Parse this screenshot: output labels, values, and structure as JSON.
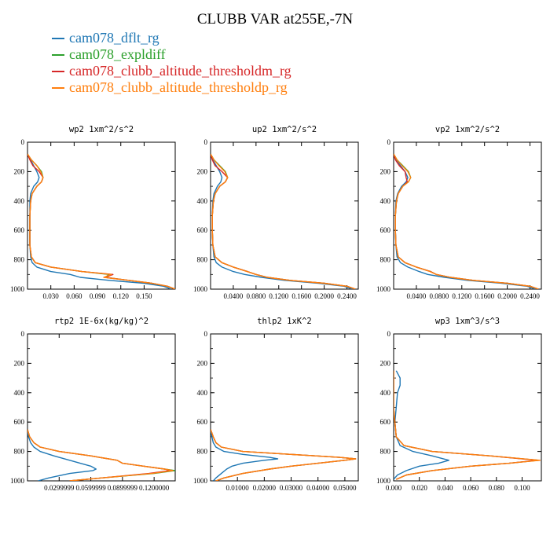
{
  "title": "CLUBB VAR at255E,-7N",
  "legend": [
    {
      "name": "cam078_dflt_rg",
      "color": "#1f77b4"
    },
    {
      "name": "cam078_expldiff",
      "color": "#2ca02c"
    },
    {
      "name": "cam078_clubb_altitude_thresholdm_rg",
      "color": "#d62728"
    },
    {
      "name": "cam078_clubb_altitude_thresholdp_rg",
      "color": "#ff7f0e"
    }
  ],
  "chart_data": [
    {
      "type": "line",
      "title": "wp2   1xm^2/s^2",
      "xlim": [
        0,
        0.19
      ],
      "ylim": [
        1000,
        0
      ],
      "xticks": [
        0.03,
        0.06,
        0.09,
        0.12,
        0.15
      ],
      "xticklabels": [
        "0.030",
        "0.060",
        "0.090",
        "0.120",
        "0.150"
      ],
      "yticks": [
        0,
        200,
        400,
        600,
        800,
        1000
      ],
      "y": [
        80,
        120,
        160,
        200,
        240,
        270,
        300,
        350,
        400,
        500,
        600,
        700,
        780,
        820,
        850,
        880,
        900,
        920,
        940,
        960,
        980,
        1000
      ],
      "series": [
        {
          "name": "cam078_dflt_rg",
          "values": [
            0,
            0.004,
            0.008,
            0.012,
            0.015,
            0.013,
            0.008,
            0.004,
            0.003,
            0.003,
            0.003,
            0.003,
            0.004,
            0.006,
            0.012,
            0.03,
            0.055,
            0.068,
            0.105,
            0.15,
            0.175,
            0.185
          ]
        },
        {
          "name": "cam078_expldiff",
          "values": [
            0,
            0.005,
            0.012,
            0.018,
            0.02,
            0.018,
            0.012,
            0.006,
            0.004,
            0.003,
            0.003,
            0.003,
            0.005,
            0.01,
            0.03,
            0.07,
            0.105,
            0.1,
            0.13,
            0.16,
            0.18,
            0.19
          ]
        },
        {
          "name": "cam078_clubb_altitude_thresholdm_rg",
          "values": [
            0,
            0.003,
            0.007,
            0.015,
            0.02,
            0.018,
            0.012,
            0.006,
            0.004,
            0.003,
            0.003,
            0.003,
            0.005,
            0.01,
            0.03,
            0.07,
            0.11,
            0.1,
            0.13,
            0.16,
            0.18,
            0.19
          ]
        },
        {
          "name": "cam078_clubb_altitude_thresholdp_rg",
          "values": [
            0,
            0.005,
            0.012,
            0.017,
            0.02,
            0.018,
            0.012,
            0.006,
            0.004,
            0.003,
            0.003,
            0.003,
            0.005,
            0.01,
            0.03,
            0.07,
            0.108,
            0.098,
            0.13,
            0.16,
            0.18,
            0.19
          ]
        }
      ]
    },
    {
      "type": "line",
      "title": "up2   1xm^2/s^2",
      "xlim": [
        0,
        0.26
      ],
      "ylim": [
        1000,
        0
      ],
      "xticks": [
        0.04,
        0.08,
        0.12,
        0.16,
        0.2,
        0.24
      ],
      "xticklabels": [
        "0.0400",
        "0.0800",
        "0.1200",
        "0.1600",
        "0.2000",
        "0.2400"
      ],
      "yticks": [
        0,
        200,
        400,
        600,
        800,
        1000
      ],
      "y": [
        80,
        120,
        160,
        200,
        240,
        270,
        300,
        350,
        400,
        500,
        600,
        700,
        780,
        820,
        850,
        880,
        900,
        920,
        940,
        960,
        980,
        1000
      ],
      "series": [
        {
          "name": "cam078_dflt_rg",
          "values": [
            0,
            0.004,
            0.01,
            0.016,
            0.02,
            0.018,
            0.012,
            0.006,
            0.004,
            0.003,
            0.003,
            0.004,
            0.006,
            0.01,
            0.02,
            0.04,
            0.06,
            0.09,
            0.13,
            0.19,
            0.235,
            0.25
          ]
        },
        {
          "name": "cam078_expldiff",
          "values": [
            0,
            0.006,
            0.016,
            0.026,
            0.03,
            0.026,
            0.016,
            0.008,
            0.005,
            0.003,
            0.003,
            0.004,
            0.008,
            0.02,
            0.04,
            0.065,
            0.08,
            0.1,
            0.14,
            0.2,
            0.24,
            0.255
          ]
        },
        {
          "name": "cam078_clubb_altitude_thresholdm_rg",
          "values": [
            0,
            0.003,
            0.008,
            0.02,
            0.03,
            0.026,
            0.016,
            0.008,
            0.005,
            0.003,
            0.003,
            0.004,
            0.008,
            0.02,
            0.04,
            0.065,
            0.08,
            0.1,
            0.14,
            0.2,
            0.24,
            0.255
          ]
        },
        {
          "name": "cam078_clubb_altitude_thresholdp_rg",
          "values": [
            0,
            0.006,
            0.015,
            0.025,
            0.03,
            0.026,
            0.016,
            0.008,
            0.005,
            0.003,
            0.003,
            0.004,
            0.008,
            0.02,
            0.04,
            0.064,
            0.08,
            0.1,
            0.14,
            0.2,
            0.24,
            0.255
          ]
        }
      ]
    },
    {
      "type": "line",
      "title": "vp2   1xm^2/s^2",
      "xlim": [
        0,
        0.26
      ],
      "ylim": [
        1000,
        0
      ],
      "xticks": [
        0.04,
        0.08,
        0.12,
        0.16,
        0.2,
        0.24
      ],
      "xticklabels": [
        "0.0400",
        "0.0800",
        "0.1200",
        "0.1600",
        "0.2000",
        "0.2400"
      ],
      "yticks": [
        0,
        200,
        400,
        600,
        800,
        1000
      ],
      "y": [
        80,
        120,
        160,
        200,
        240,
        270,
        300,
        350,
        400,
        500,
        600,
        700,
        780,
        820,
        850,
        880,
        900,
        920,
        940,
        960,
        980,
        1000
      ],
      "series": [
        {
          "name": "cam078_dflt_rg",
          "values": [
            0,
            0.005,
            0.012,
            0.02,
            0.025,
            0.022,
            0.014,
            0.007,
            0.004,
            0.003,
            0.003,
            0.004,
            0.006,
            0.012,
            0.025,
            0.045,
            0.06,
            0.09,
            0.13,
            0.19,
            0.235,
            0.25
          ]
        },
        {
          "name": "cam078_expldiff",
          "values": [
            0,
            0.006,
            0.016,
            0.026,
            0.03,
            0.026,
            0.016,
            0.008,
            0.005,
            0.003,
            0.003,
            0.004,
            0.008,
            0.02,
            0.04,
            0.065,
            0.075,
            0.1,
            0.14,
            0.2,
            0.24,
            0.255
          ]
        },
        {
          "name": "cam078_clubb_altitude_thresholdm_rg",
          "values": [
            0,
            0.003,
            0.01,
            0.02,
            0.022,
            0.024,
            0.016,
            0.008,
            0.005,
            0.003,
            0.003,
            0.004,
            0.008,
            0.02,
            0.04,
            0.065,
            0.075,
            0.1,
            0.14,
            0.2,
            0.24,
            0.255
          ]
        },
        {
          "name": "cam078_clubb_altitude_thresholdp_rg",
          "values": [
            0,
            0.006,
            0.015,
            0.025,
            0.03,
            0.026,
            0.016,
            0.008,
            0.005,
            0.003,
            0.003,
            0.004,
            0.008,
            0.02,
            0.04,
            0.064,
            0.075,
            0.1,
            0.14,
            0.2,
            0.24,
            0.255
          ]
        }
      ]
    },
    {
      "type": "line",
      "title": "rtp2   1E-6x(kg/kg)^2",
      "xlim": [
        0,
        0.14
      ],
      "ylim": [
        1000,
        0
      ],
      "xticks": [
        0.03,
        0.06,
        0.09,
        0.12
      ],
      "xticklabels": [
        "0.0299999",
        "0.0599999",
        "0.0899999",
        "0.1200000"
      ],
      "yticks": [
        0,
        200,
        400,
        600,
        800,
        1000
      ],
      "y": [
        650,
        700,
        740,
        770,
        800,
        830,
        860,
        880,
        900,
        920,
        930,
        950,
        980,
        1000
      ],
      "series": [
        {
          "name": "cam078_dflt_rg",
          "values": [
            0,
            0.001,
            0.003,
            0.006,
            0.012,
            0.025,
            0.04,
            0.05,
            0.06,
            0.065,
            0.062,
            0.04,
            0.02,
            0.01
          ]
        },
        {
          "name": "cam078_expldiff",
          "values": [
            0,
            0.002,
            0.006,
            0.012,
            0.03,
            0.06,
            0.085,
            0.09,
            0.11,
            0.13,
            0.14,
            0.12,
            0.07,
            0.04
          ]
        },
        {
          "name": "cam078_clubb_altitude_thresholdm_rg",
          "values": [
            0,
            0.002,
            0.006,
            0.012,
            0.03,
            0.06,
            0.085,
            0.09,
            0.11,
            0.13,
            0.135,
            0.115,
            0.07,
            0.04
          ]
        },
        {
          "name": "cam078_clubb_altitude_thresholdp_rg",
          "values": [
            0,
            0.002,
            0.006,
            0.012,
            0.03,
            0.06,
            0.085,
            0.09,
            0.11,
            0.13,
            0.138,
            0.118,
            0.07,
            0.04
          ]
        }
      ]
    },
    {
      "type": "line",
      "title": "thlp2   1xK^2",
      "xlim": [
        0,
        0.055
      ],
      "ylim": [
        1000,
        0
      ],
      "xticks": [
        0.01,
        0.02,
        0.03,
        0.04,
        0.05
      ],
      "xticklabels": [
        "0.01000",
        "0.02000",
        "0.03000",
        "0.04000",
        "0.05000"
      ],
      "yticks": [
        0,
        200,
        400,
        600,
        800,
        1000
      ],
      "y": [
        650,
        700,
        740,
        770,
        800,
        820,
        840,
        850,
        860,
        880,
        900,
        920,
        950,
        980,
        1000
      ],
      "series": [
        {
          "name": "cam078_dflt_rg",
          "values": [
            0,
            0.0005,
            0.001,
            0.002,
            0.005,
            0.012,
            0.022,
            0.025,
            0.02,
            0.012,
            0.008,
            0.006,
            0.004,
            0.002,
            0.001
          ]
        },
        {
          "name": "cam078_expldiff",
          "values": [
            0,
            0.001,
            0.002,
            0.004,
            0.012,
            0.03,
            0.048,
            0.054,
            0.05,
            0.04,
            0.03,
            0.022,
            0.012,
            0.005,
            0.002
          ]
        },
        {
          "name": "cam078_clubb_altitude_thresholdm_rg",
          "values": [
            0,
            0.001,
            0.002,
            0.004,
            0.012,
            0.03,
            0.048,
            0.054,
            0.05,
            0.04,
            0.03,
            0.022,
            0.012,
            0.005,
            0.002
          ]
        },
        {
          "name": "cam078_clubb_altitude_thresholdp_rg",
          "values": [
            0,
            0.001,
            0.002,
            0.004,
            0.012,
            0.03,
            0.048,
            0.054,
            0.05,
            0.04,
            0.03,
            0.022,
            0.012,
            0.005,
            0.002
          ]
        }
      ]
    },
    {
      "type": "line",
      "title": "wp3   1xm^3/s^3",
      "xlim": [
        0,
        0.115
      ],
      "ylim": [
        1000,
        0
      ],
      "xticks": [
        0,
        0.02,
        0.04,
        0.06,
        0.08,
        0.1
      ],
      "xticklabels": [
        "0.000",
        "0.020",
        "0.040",
        "0.060",
        "0.080",
        "0.100"
      ],
      "yticks": [
        0,
        200,
        400,
        600,
        800,
        1000
      ],
      "y": [
        250,
        300,
        350,
        400,
        500,
        600,
        700,
        760,
        800,
        830,
        860,
        880,
        900,
        930,
        960,
        990
      ],
      "series": [
        {
          "name": "cam078_dflt_rg",
          "values": [
            0.002,
            0.005,
            0.005,
            0.003,
            0.002,
            0.001,
            0.002,
            0.005,
            0.015,
            0.03,
            0.043,
            0.035,
            0.02,
            0.01,
            0.003,
            0
          ]
        },
        {
          "name": "cam078_expldiff",
          "values": [
            0,
            0,
            0,
            0,
            0,
            0.001,
            0.002,
            0.008,
            0.03,
            0.075,
            0.113,
            0.09,
            0.06,
            0.03,
            0.01,
            0.002
          ]
        },
        {
          "name": "cam078_clubb_altitude_thresholdm_rg",
          "values": [
            0,
            0,
            0,
            0,
            0,
            0.001,
            0.002,
            0.008,
            0.03,
            0.075,
            0.112,
            0.09,
            0.06,
            0.03,
            0.01,
            0.002
          ]
        },
        {
          "name": "cam078_clubb_altitude_thresholdp_rg",
          "values": [
            0,
            0,
            0,
            0,
            0,
            0.001,
            0.002,
            0.008,
            0.03,
            0.075,
            0.114,
            0.09,
            0.06,
            0.03,
            0.01,
            0.002
          ]
        }
      ]
    }
  ]
}
